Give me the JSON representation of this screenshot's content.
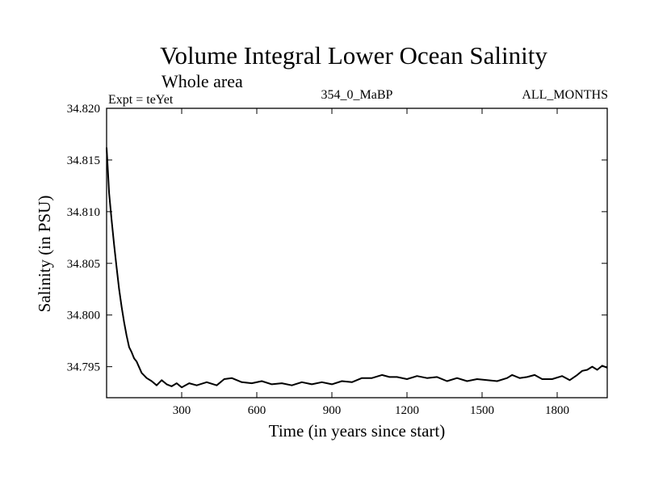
{
  "chart_data": {
    "type": "line",
    "title": "Volume Integral Lower Ocean Salinity",
    "subtitle": "Whole area",
    "experiment_label": "Expt = teYet",
    "run_label": "354_0_MaBP",
    "months_label": "ALL_MONTHS",
    "xlabel": "Time (in years since start)",
    "ylabel": "Salinity (in PSU)",
    "xlim": [
      0,
      2000
    ],
    "ylim": [
      34.792,
      34.82
    ],
    "x_ticks": [
      300,
      600,
      900,
      1200,
      1500,
      1800
    ],
    "x_tick_labels": [
      "300",
      "600",
      "900",
      "1200",
      "1500",
      "1800"
    ],
    "y_ticks": [
      34.795,
      34.8,
      34.805,
      34.81,
      34.815,
      34.82
    ],
    "y_tick_labels": [
      "34.795",
      "34.800",
      "34.805",
      "34.810",
      "34.815",
      "34.820"
    ],
    "grid": false,
    "series": [
      {
        "name": "Salinity",
        "x": [
          0,
          5,
          10,
          20,
          30,
          40,
          50,
          60,
          70,
          80,
          90,
          100,
          110,
          120,
          140,
          160,
          180,
          200,
          220,
          240,
          260,
          280,
          300,
          330,
          360,
          400,
          440,
          470,
          500,
          540,
          580,
          620,
          660,
          700,
          740,
          780,
          820,
          860,
          900,
          940,
          980,
          1020,
          1060,
          1100,
          1130,
          1160,
          1200,
          1240,
          1280,
          1320,
          1360,
          1400,
          1440,
          1480,
          1520,
          1560,
          1600,
          1620,
          1650,
          1680,
          1710,
          1740,
          1780,
          1820,
          1850,
          1880,
          1900,
          1920,
          1940,
          1960,
          1980,
          2000
        ],
        "y": [
          34.8162,
          34.814,
          34.8118,
          34.8092,
          34.8068,
          34.8046,
          34.8025,
          34.8008,
          34.7993,
          34.798,
          34.7969,
          34.7964,
          34.7958,
          34.7955,
          34.7944,
          34.7939,
          34.7936,
          34.7932,
          34.7937,
          34.7933,
          34.7931,
          34.7934,
          34.793,
          34.7934,
          34.7932,
          34.7935,
          34.7932,
          34.7938,
          34.7939,
          34.7935,
          34.7934,
          34.7936,
          34.7933,
          34.7934,
          34.7932,
          34.7935,
          34.7933,
          34.7935,
          34.7933,
          34.7936,
          34.7935,
          34.7939,
          34.7939,
          34.7942,
          34.794,
          34.794,
          34.7938,
          34.7941,
          34.7939,
          34.794,
          34.7936,
          34.7939,
          34.7936,
          34.7938,
          34.7937,
          34.7936,
          34.7939,
          34.7942,
          34.7939,
          34.794,
          34.7942,
          34.7938,
          34.7938,
          34.7941,
          34.7937,
          34.7942,
          34.7946,
          34.7947,
          34.795,
          34.7947,
          34.7951,
          34.7949
        ]
      }
    ]
  }
}
